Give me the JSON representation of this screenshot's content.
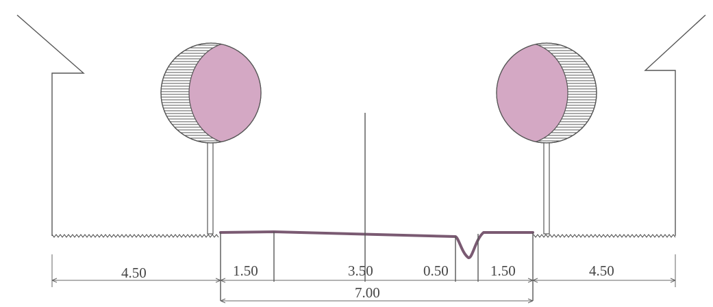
{
  "diagram": {
    "dimensions": {
      "left_verge": "4.50",
      "left_sidewalk": "1.50",
      "lane": "3.50",
      "gutter": "0.50",
      "right_sidewalk": "1.50",
      "right_verge": "4.50",
      "total_width": "7.00"
    },
    "colors": {
      "tree_crown": "#d4a8c4",
      "road_surface": "#7a5a72",
      "lines": "#555555"
    },
    "icons": {
      "building": "house-outline",
      "tree": "tree-with-shaded-crown",
      "ground": "zigzag-grass-line"
    }
  }
}
